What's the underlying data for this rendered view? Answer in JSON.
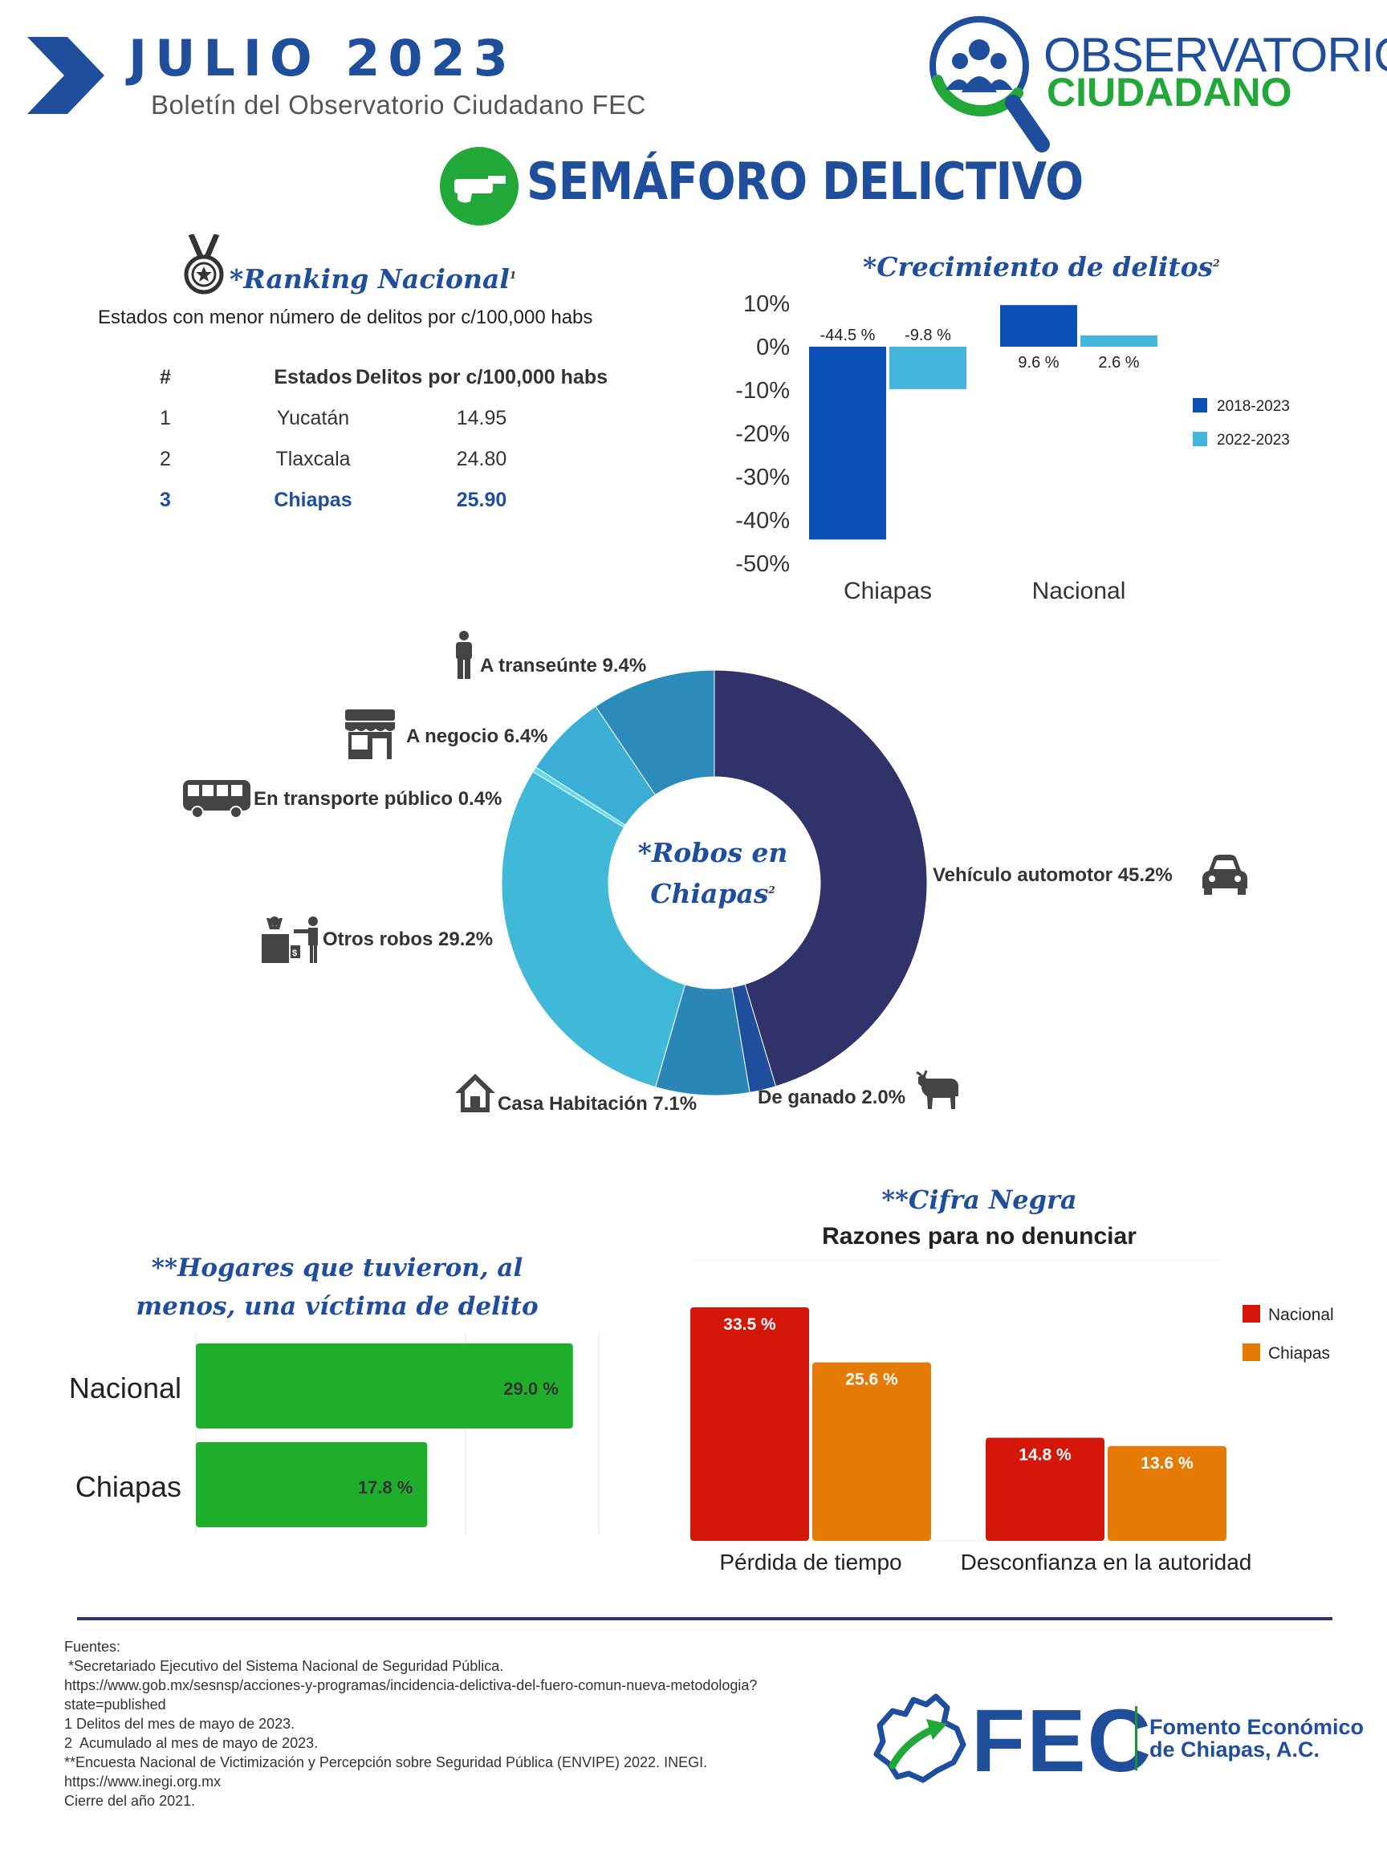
{
  "header": {
    "title": "JULIO 2023",
    "subtitle": "Boletín del Observatorio Ciudadano FEC",
    "logo": {
      "line1": "OBSERVATORIO",
      "line2": "CIUDADANO"
    }
  },
  "section_title": "SEMÁFORO DELICTIVO",
  "ranking": {
    "title": "*Ranking Nacional",
    "footnote": "1",
    "subtitle": "Estados con menor número de delitos por c/100,000 habs",
    "headers": [
      "#",
      "Estados",
      "Delitos por c/100,000 habs"
    ],
    "rows": [
      {
        "num": "1",
        "state": "Yucatán",
        "value": "14.95"
      },
      {
        "num": "2",
        "state": "Tlaxcala",
        "value": "24.80"
      },
      {
        "num": "3",
        "state": "Chiapas",
        "value": "25.90"
      }
    ]
  },
  "crecimiento": {
    "title": "*Crecimiento de delitos",
    "footnote": "2"
  },
  "robos": {
    "title_line1": "*Robos en",
    "title_line2": "Chiapas",
    "footnote": "2"
  },
  "hogares": {
    "title": "**Hogares que tuvieron, al menos, una víctima de delito"
  },
  "cifra": {
    "title": "**Cifra Negra",
    "subtitle": "Razones para no denunciar"
  },
  "colors": {
    "brand_blue": "#1f4e9c",
    "series_2018_2023": "#0a4fb5",
    "series_2022_2023": "#44b6dc",
    "green_bar": "#1fae2c",
    "nacional_red": "#d41708",
    "chiapas_orange": "#e67a06",
    "donut": [
      "#2f3369",
      "#1f4e9c",
      "#2b86b8",
      "#40b8d8",
      "#64d9ee",
      "#3aaed4",
      "#2c8bbb"
    ]
  },
  "chart_data": [
    {
      "id": "crecimiento",
      "type": "bar",
      "title": "*Crecimiento de delitos",
      "categories": [
        "Chiapas",
        "Nacional"
      ],
      "series": [
        {
          "name": "2018-2023",
          "values": [
            -44.5,
            9.6
          ],
          "labels": [
            "-44.5 %",
            "9.6 %"
          ]
        },
        {
          "name": "2022-2023",
          "values": [
            -9.8,
            2.6
          ],
          "labels": [
            "-9.8 %",
            "2.6 %"
          ]
        }
      ],
      "ylim": [
        -50,
        10
      ],
      "yticks": [
        10,
        0,
        -10,
        -20,
        -30,
        -40,
        -50
      ],
      "ytick_labels": [
        "10%",
        "0%",
        "-10%",
        "-20%",
        "-30%",
        "-40%",
        "-50%"
      ],
      "legend": "right"
    },
    {
      "id": "robos",
      "type": "pie",
      "title": "*Robos en Chiapas",
      "labels": [
        "Vehículo  automotor",
        "De ganado",
        "Casa Habitación",
        "Otros robos",
        "En transporte público",
        "A negocio",
        "A transeúnte"
      ],
      "values": [
        45.2,
        2.0,
        7.1,
        29.2,
        0.4,
        6.4,
        9.4
      ],
      "value_labels": [
        "45.2%",
        "2.0%",
        "7.1%",
        "29.2%",
        "0.4%",
        "6.4%",
        "9.4%"
      ],
      "icons": [
        "car-icon",
        "cow-icon",
        "house-icon",
        "robbery-icon",
        "bus-icon",
        "store-icon",
        "pedestrian-icon"
      ]
    },
    {
      "id": "hogares",
      "type": "bar",
      "orientation": "horizontal",
      "title": "**Hogares que tuvieron, al menos, una víctima de delito",
      "categories": [
        "Nacional",
        "Chiapas"
      ],
      "values": [
        29.0,
        17.8
      ],
      "labels": [
        "29.0 %",
        "17.8 %"
      ]
    },
    {
      "id": "cifra_negra",
      "type": "bar",
      "title": "**Cifra Negra",
      "subtitle": "Razones para no denunciar",
      "categories": [
        "Pérdida de tiempo",
        "Desconfianza en la autoridad"
      ],
      "series": [
        {
          "name": "Nacional",
          "values": [
            33.5,
            14.8
          ],
          "labels": [
            "33.5 %",
            "14.8 %"
          ]
        },
        {
          "name": "Chiapas",
          "values": [
            25.6,
            13.6
          ],
          "labels": [
            "25.6 %",
            "13.6 %"
          ]
        }
      ],
      "legend": "right"
    }
  ],
  "footer": {
    "sources": [
      "Fuentes:",
      " *Secretariado Ejecutivo del Sistema Nacional de Seguridad Pública.",
      "https://www.gob.mx/sesnsp/acciones-y-programas/incidencia-delictiva-del-fuero-comun-nueva-metodologia?",
      "state=published",
      "1 Delitos del mes de mayo de 2023.",
      "2  Acumulado al mes de mayo de 2023.",
      "**Encuesta Nacional de Victimización y Percepción sobre Seguridad Pública (ENVIPE) 2022. INEGI.",
      "https://www.inegi.org.mx",
      "Cierre del año 2021."
    ],
    "fec_word": "FEC",
    "fec_name_line1": "Fomento Económico",
    "fec_name_line2": "de Chiapas, A.C."
  }
}
